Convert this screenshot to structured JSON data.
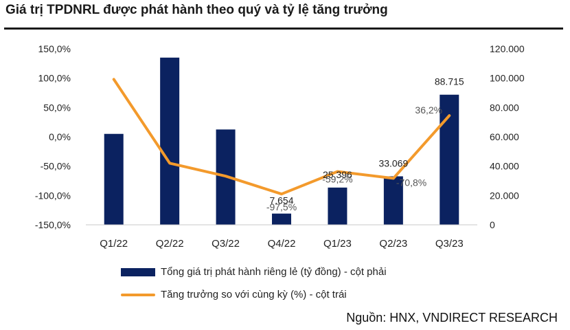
{
  "title": "Giá trị TPDNRL được phát hành theo quý và tỷ lệ tăng trưởng",
  "source": "Nguồn: HNX, VNDIRECT RESEARCH",
  "colors": {
    "bar": "#0b2260",
    "line": "#f39a2c"
  },
  "chart_data": {
    "type": "bar",
    "categories": [
      "Q1/22",
      "Q2/22",
      "Q3/22",
      "Q4/22",
      "Q1/23",
      "Q2/23",
      "Q3/23"
    ],
    "series": [
      {
        "name": "Tổng giá trị phát hành riêng lẻ (tỷ đồng) - cột phải",
        "type": "bar",
        "axis": "right",
        "values": [
          62000,
          114000,
          65000,
          7654,
          25396,
          33069,
          88715
        ],
        "data_labels": [
          "",
          "",
          "",
          "7.654",
          "25.396",
          "33.069",
          "88.715"
        ]
      },
      {
        "name": "Tăng trưởng so với cùng kỳ (%) - cột trái",
        "type": "line",
        "axis": "left",
        "values": [
          98,
          -45,
          -67,
          -97.5,
          -59.2,
          -70.8,
          36.2
        ],
        "data_labels": [
          "",
          "",
          "",
          "-97,5%",
          "-59,2%",
          "-70,8%",
          "36,2%"
        ]
      }
    ],
    "y_left": {
      "ylim": [
        -150,
        150
      ],
      "ticks": [
        150,
        100,
        50,
        0,
        -50,
        -100,
        -150
      ],
      "tick_labels": [
        "150,0%",
        "100,0%",
        "50,0%",
        "0,0%",
        "-50,0%",
        "-100,0%",
        "-150,0%"
      ]
    },
    "y_right": {
      "ylim": [
        0,
        120000
      ],
      "ticks": [
        120000,
        100000,
        80000,
        60000,
        40000,
        20000,
        0
      ],
      "tick_labels": [
        "120.000",
        "100.000",
        "80.000",
        "60.000",
        "40.000",
        "20.000",
        "0"
      ]
    },
    "grid": false,
    "legend_position": "bottom"
  }
}
